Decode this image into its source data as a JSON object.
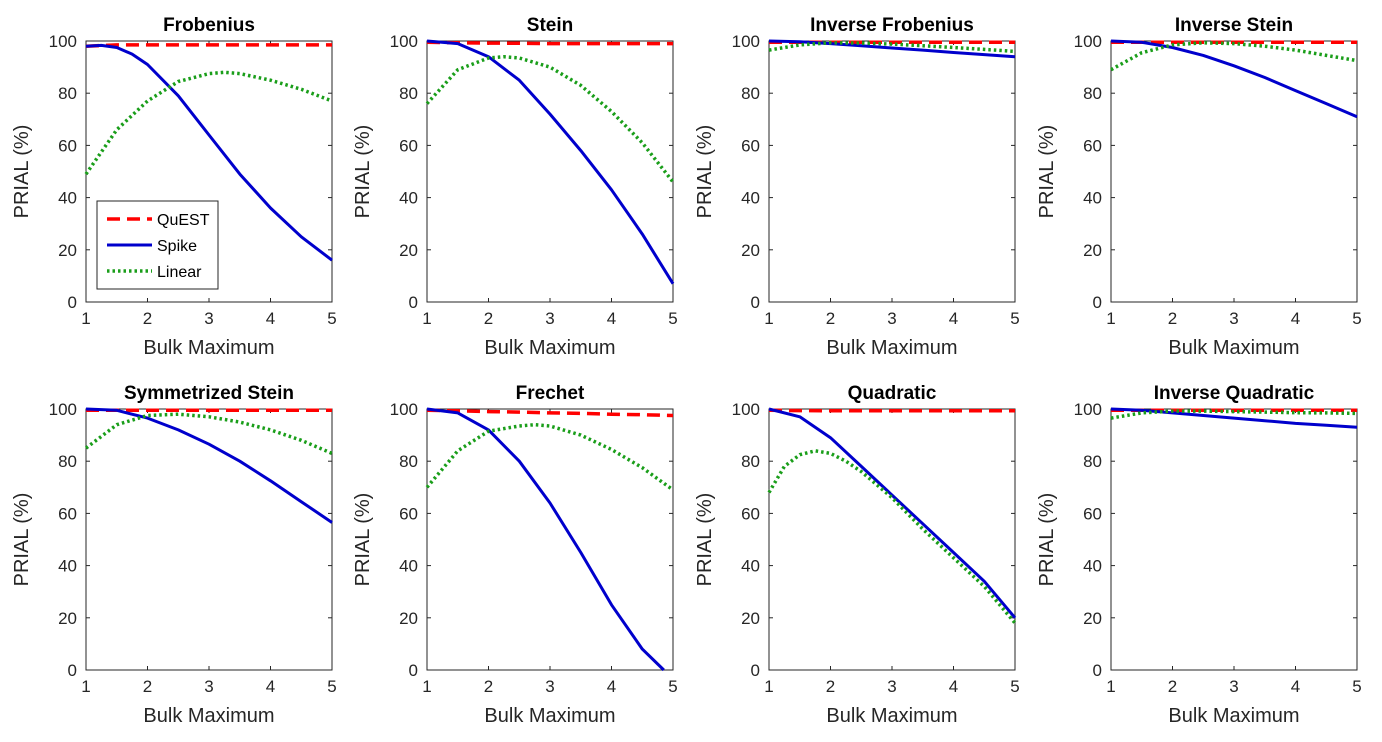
{
  "colors": {
    "quest": "#ff0000",
    "spike": "#0000cc",
    "linear": "#1a9e1a"
  },
  "legend": [
    {
      "series": "quest",
      "label": "QuEST",
      "style": "dashed"
    },
    {
      "series": "spike",
      "label": "Spike",
      "style": "solid"
    },
    {
      "series": "linear",
      "label": "Linear",
      "style": "dotted"
    }
  ],
  "chart_data": [
    {
      "type": "line",
      "title": "Frobenius",
      "xlabel": "Bulk Maximum",
      "ylabel": "PRIAL (%)",
      "xlim": [
        1,
        5
      ],
      "ylim": [
        0,
        100
      ],
      "xticks": [
        1,
        2,
        3,
        4,
        5
      ],
      "yticks": [
        0,
        20,
        40,
        60,
        80,
        100
      ],
      "series": [
        {
          "name": "QuEST",
          "key": "quest",
          "x": [
            1,
            1.5,
            2,
            2.5,
            3,
            3.5,
            4,
            4.5,
            5
          ],
          "y": [
            98,
            98.5,
            98.5,
            98.5,
            98.5,
            98.5,
            98.5,
            98.5,
            98.5
          ]
        },
        {
          "name": "Spike",
          "key": "spike",
          "x": [
            1,
            1.25,
            1.5,
            1.75,
            2,
            2.5,
            3,
            3.5,
            4,
            4.5,
            5
          ],
          "y": [
            98,
            98.3,
            97.5,
            95,
            91,
            79,
            64,
            49,
            36,
            25,
            16
          ]
        },
        {
          "name": "Linear",
          "key": "linear",
          "x": [
            1,
            1.5,
            2,
            2.5,
            3,
            3.25,
            3.5,
            4,
            4.5,
            5
          ],
          "y": [
            49,
            66,
            77,
            84.5,
            87.5,
            88,
            87.5,
            85,
            81.5,
            77
          ]
        }
      ]
    },
    {
      "type": "line",
      "title": "Stein",
      "xlabel": "Bulk Maximum",
      "ylabel": "PRIAL (%)",
      "xlim": [
        1,
        5
      ],
      "ylim": [
        0,
        100
      ],
      "xticks": [
        1,
        2,
        3,
        4,
        5
      ],
      "yticks": [
        0,
        20,
        40,
        60,
        80,
        100
      ],
      "series": [
        {
          "name": "QuEST",
          "key": "quest",
          "x": [
            1,
            1.5,
            2,
            2.5,
            3,
            3.5,
            4,
            4.5,
            5
          ],
          "y": [
            99.5,
            99.3,
            99.2,
            99.1,
            99,
            99,
            99,
            99,
            99
          ]
        },
        {
          "name": "Spike",
          "key": "spike",
          "x": [
            1,
            1.5,
            2,
            2.5,
            3,
            3.5,
            4,
            4.5,
            5
          ],
          "y": [
            100,
            99,
            94,
            85,
            72,
            58,
            43,
            26,
            7
          ]
        },
        {
          "name": "Linear",
          "key": "linear",
          "x": [
            1,
            1.5,
            2,
            2.25,
            2.5,
            3,
            3.5,
            4,
            4.5,
            5
          ],
          "y": [
            76,
            89,
            93.5,
            94,
            93.5,
            90,
            83,
            73,
            61,
            46
          ]
        }
      ]
    },
    {
      "type": "line",
      "title": "Inverse Frobenius",
      "xlabel": "Bulk Maximum",
      "ylabel": "PRIAL (%)",
      "xlim": [
        1,
        5
      ],
      "ylim": [
        0,
        100
      ],
      "xticks": [
        1,
        2,
        3,
        4,
        5
      ],
      "yticks": [
        0,
        20,
        40,
        60,
        80,
        100
      ],
      "series": [
        {
          "name": "QuEST",
          "key": "quest",
          "x": [
            1,
            1.5,
            2,
            2.5,
            3,
            3.5,
            4,
            4.5,
            5
          ],
          "y": [
            99.5,
            99.5,
            99.5,
            99.5,
            99.5,
            99.5,
            99.5,
            99.5,
            99.5
          ]
        },
        {
          "name": "Spike",
          "key": "spike",
          "x": [
            1,
            1.5,
            2,
            2.5,
            3,
            3.5,
            4,
            4.5,
            5
          ],
          "y": [
            100,
            99.7,
            99,
            98.2,
            97.3,
            96.5,
            95.6,
            94.8,
            94
          ]
        },
        {
          "name": "Linear",
          "key": "linear",
          "x": [
            1,
            1.5,
            2,
            2.5,
            3,
            3.5,
            4,
            4.5,
            5
          ],
          "y": [
            96.5,
            98.5,
            99.3,
            99.2,
            98.8,
            98.2,
            97.5,
            96.8,
            96
          ]
        }
      ]
    },
    {
      "type": "line",
      "title": "Inverse Stein",
      "xlabel": "Bulk Maximum",
      "ylabel": "PRIAL (%)",
      "xlim": [
        1,
        5
      ],
      "ylim": [
        0,
        100
      ],
      "xticks": [
        1,
        2,
        3,
        4,
        5
      ],
      "yticks": [
        0,
        20,
        40,
        60,
        80,
        100
      ],
      "series": [
        {
          "name": "QuEST",
          "key": "quest",
          "x": [
            1,
            1.5,
            2,
            2.5,
            3,
            3.5,
            4,
            4.5,
            5
          ],
          "y": [
            99.5,
            99.5,
            99.5,
            99.5,
            99.5,
            99.5,
            99.5,
            99.5,
            99.5
          ]
        },
        {
          "name": "Spike",
          "key": "spike",
          "x": [
            1,
            1.5,
            2,
            2.5,
            3,
            3.5,
            4,
            4.5,
            5
          ],
          "y": [
            100,
            99.5,
            97.5,
            94.5,
            90.5,
            86,
            81,
            76,
            71
          ]
        },
        {
          "name": "Linear",
          "key": "linear",
          "x": [
            1,
            1.5,
            2,
            2.5,
            3,
            3.5,
            4,
            4.5,
            5
          ],
          "y": [
            89,
            95.5,
            98.5,
            99.3,
            99,
            98,
            96.5,
            94.5,
            92.5
          ]
        }
      ]
    },
    {
      "type": "line",
      "title": "Symmetrized Stein",
      "xlabel": "Bulk Maximum",
      "ylabel": "PRIAL (%)",
      "xlim": [
        1,
        5
      ],
      "ylim": [
        0,
        100
      ],
      "xticks": [
        1,
        2,
        3,
        4,
        5
      ],
      "yticks": [
        0,
        20,
        40,
        60,
        80,
        100
      ],
      "series": [
        {
          "name": "QuEST",
          "key": "quest",
          "x": [
            1,
            1.5,
            2,
            2.5,
            3,
            3.5,
            4,
            4.5,
            5
          ],
          "y": [
            99.5,
            99.5,
            99.5,
            99.5,
            99.5,
            99.5,
            99.5,
            99.5,
            99.5
          ]
        },
        {
          "name": "Spike",
          "key": "spike",
          "x": [
            1,
            1.5,
            2,
            2.5,
            3,
            3.5,
            4,
            4.5,
            5
          ],
          "y": [
            100,
            99.5,
            96.5,
            92,
            86.5,
            80,
            72.5,
            64.5,
            56.5
          ]
        },
        {
          "name": "Linear",
          "key": "linear",
          "x": [
            1,
            1.5,
            2,
            2.5,
            3,
            3.5,
            4,
            4.5,
            5
          ],
          "y": [
            85,
            94,
            97.5,
            98,
            97,
            95,
            92,
            88,
            83
          ]
        }
      ]
    },
    {
      "type": "line",
      "title": "Frechet",
      "xlabel": "Bulk Maximum",
      "ylabel": "PRIAL (%)",
      "xlim": [
        1,
        5
      ],
      "ylim": [
        0,
        100
      ],
      "xticks": [
        1,
        2,
        3,
        4,
        5
      ],
      "yticks": [
        0,
        20,
        40,
        60,
        80,
        100
      ],
      "series": [
        {
          "name": "QuEST",
          "key": "quest",
          "x": [
            1,
            1.5,
            2,
            2.5,
            3,
            3.5,
            4,
            4.5,
            5
          ],
          "y": [
            99.5,
            99.3,
            99,
            98.8,
            98.5,
            98.3,
            98,
            97.8,
            97.5
          ]
        },
        {
          "name": "Spike",
          "key": "spike",
          "x": [
            1,
            1.5,
            2,
            2.5,
            3,
            3.5,
            4,
            4.5,
            4.85
          ],
          "y": [
            100,
            98.5,
            92,
            80,
            64,
            45,
            25,
            8,
            0
          ]
        },
        {
          "name": "Linear",
          "key": "linear",
          "x": [
            1,
            1.5,
            2,
            2.5,
            2.75,
            3,
            3.5,
            4,
            4.5,
            5
          ],
          "y": [
            70,
            84,
            91.5,
            93.5,
            94,
            93.5,
            90,
            84.5,
            77.5,
            69
          ]
        }
      ]
    },
    {
      "type": "line",
      "title": "Quadratic",
      "xlabel": "Bulk Maximum",
      "ylabel": "PRIAL (%)",
      "xlim": [
        1,
        5
      ],
      "ylim": [
        0,
        100
      ],
      "xticks": [
        1,
        2,
        3,
        4,
        5
      ],
      "yticks": [
        0,
        20,
        40,
        60,
        80,
        100
      ],
      "series": [
        {
          "name": "QuEST",
          "key": "quest",
          "x": [
            1,
            1.5,
            2,
            2.5,
            3,
            3.5,
            4,
            4.5,
            5
          ],
          "y": [
            99.5,
            99.4,
            99.3,
            99.3,
            99.3,
            99.3,
            99.3,
            99.3,
            99.3
          ]
        },
        {
          "name": "Spike",
          "key": "spike",
          "x": [
            1,
            1.5,
            2,
            2.5,
            3,
            3.5,
            4,
            4.5,
            5
          ],
          "y": [
            100,
            97,
            89,
            78,
            67,
            56,
            45,
            34,
            20
          ]
        },
        {
          "name": "Linear",
          "key": "linear",
          "x": [
            1,
            1.25,
            1.5,
            1.75,
            2,
            2.25,
            2.5,
            3,
            3.5,
            4,
            4.5,
            5
          ],
          "y": [
            68,
            78,
            82.5,
            84,
            83,
            80,
            76,
            66,
            54,
            43,
            32,
            18
          ]
        }
      ]
    },
    {
      "type": "line",
      "title": "Inverse Quadratic",
      "xlabel": "Bulk Maximum",
      "ylabel": "PRIAL (%)",
      "xlim": [
        1,
        5
      ],
      "ylim": [
        0,
        100
      ],
      "xticks": [
        1,
        2,
        3,
        4,
        5
      ],
      "yticks": [
        0,
        20,
        40,
        60,
        80,
        100
      ],
      "series": [
        {
          "name": "QuEST",
          "key": "quest",
          "x": [
            1,
            1.5,
            2,
            2.5,
            3,
            3.5,
            4,
            4.5,
            5
          ],
          "y": [
            99.5,
            99.5,
            99.5,
            99.5,
            99.5,
            99.5,
            99.5,
            99.5,
            99.5
          ]
        },
        {
          "name": "Spike",
          "key": "spike",
          "x": [
            1,
            1.5,
            2,
            2.5,
            3,
            3.5,
            4,
            4.5,
            5
          ],
          "y": [
            100,
            99.5,
            98.5,
            97.5,
            96.5,
            95.5,
            94.5,
            93.8,
            93
          ]
        },
        {
          "name": "Linear",
          "key": "linear",
          "x": [
            1,
            1.5,
            2,
            2.5,
            3,
            3.5,
            4,
            4.5,
            5
          ],
          "y": [
            96.5,
            98.5,
            99.2,
            99.2,
            99,
            98.8,
            98.6,
            98.5,
            98.3
          ]
        }
      ]
    }
  ]
}
